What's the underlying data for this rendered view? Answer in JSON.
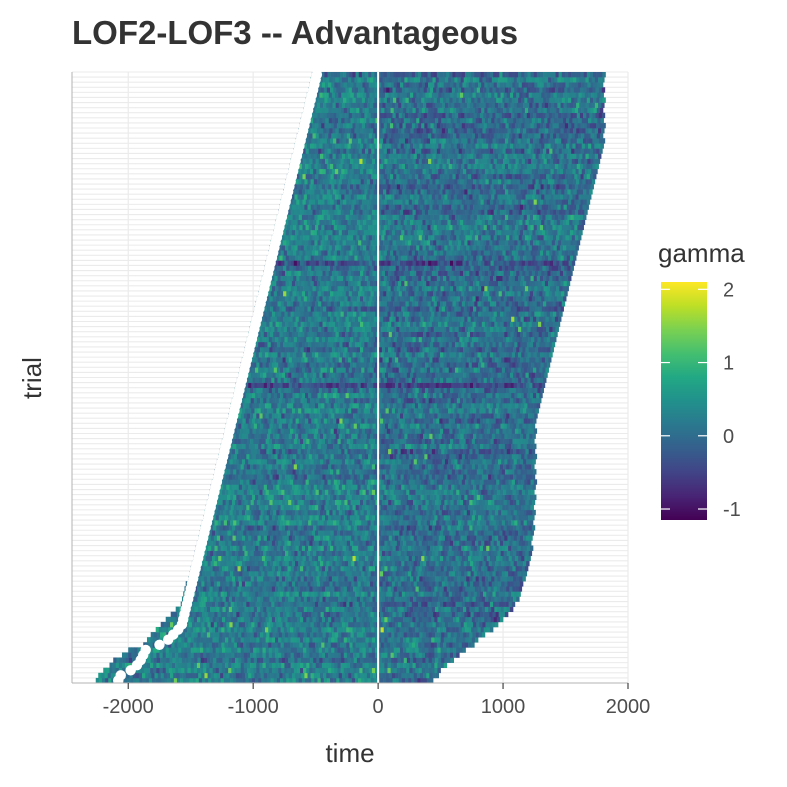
{
  "chart_data": {
    "type": "heatmap",
    "title": "LOF2-LOF3 -- Advantageous",
    "xlabel": "time",
    "ylabel": "trial",
    "xlim": [
      -2450,
      2000
    ],
    "x_ticks": [
      -2000,
      -1000,
      0,
      1000,
      2000
    ],
    "x_tick_labels": [
      "-2000",
      "-1000",
      "0",
      "1000",
      "2000"
    ],
    "grid": true,
    "n_trials": 120,
    "time_bin_ms": 25,
    "heat_row_window_start_ms": [
      -2260,
      -2240,
      -2200,
      -2150,
      -2120,
      -2050,
      -2000,
      -1880,
      -1850,
      -1820,
      -1780,
      -1740,
      -1700,
      -1660,
      -1620,
      -1580,
      -1570,
      -1560,
      -1550,
      -1540,
      -1520,
      -1510,
      -1500,
      -1490,
      -1480,
      -1470,
      -1460,
      -1450,
      -1440,
      -1430,
      -1420,
      -1410,
      -1400,
      -1390,
      -1380,
      -1370,
      -1360,
      -1350,
      -1340,
      -1330,
      -1320,
      -1310,
      -1300,
      -1290,
      -1280,
      -1270,
      -1260,
      -1250,
      -1240,
      -1230,
      -1220,
      -1210,
      -1200,
      -1190,
      -1180,
      -1170,
      -1160,
      -1150,
      -1140,
      -1130,
      -1120,
      -1110,
      -1100,
      -1090,
      -1080,
      -1070,
      -1060,
      -1050,
      -1040,
      -1030,
      -1020,
      -1010,
      -1000,
      -990,
      -980,
      -970,
      -960,
      -950,
      -940,
      -930,
      -920,
      -910,
      -900,
      -890,
      -880,
      -870,
      -860,
      -850,
      -840,
      -830,
      -820,
      -810,
      -800,
      -790,
      -780,
      -770,
      -760,
      -750,
      -740,
      -730,
      -720,
      -710,
      -700,
      -690,
      -680,
      -670,
      -660,
      -650,
      -640,
      -630,
      -620,
      -610,
      -600,
      -590,
      -580,
      -570,
      -560,
      -550,
      -540,
      -530
    ],
    "heat_row_window_end_ms": [
      440,
      470,
      500,
      540,
      600,
      650,
      700,
      750,
      800,
      850,
      900,
      950,
      1000,
      1030,
      1060,
      1090,
      1110,
      1130,
      1150,
      1160,
      1170,
      1180,
      1190,
      1200,
      1210,
      1215,
      1220,
      1225,
      1230,
      1235,
      1240,
      1240,
      1240,
      1240,
      1240,
      1245,
      1250,
      1250,
      1250,
      1250,
      1250,
      1250,
      1250,
      1250,
      1250,
      1250,
      1250,
      1250,
      1250,
      1250,
      1250,
      1250,
      1260,
      1270,
      1280,
      1290,
      1300,
      1310,
      1320,
      1330,
      1340,
      1350,
      1360,
      1370,
      1380,
      1390,
      1400,
      1410,
      1420,
      1430,
      1440,
      1450,
      1460,
      1470,
      1480,
      1490,
      1500,
      1510,
      1520,
      1530,
      1540,
      1550,
      1560,
      1570,
      1580,
      1590,
      1600,
      1610,
      1620,
      1630,
      1640,
      1650,
      1660,
      1670,
      1680,
      1690,
      1700,
      1710,
      1720,
      1730,
      1740,
      1750,
      1760,
      1770,
      1780,
      1790,
      1800,
      1800,
      1800,
      1800,
      1800,
      1800,
      1800,
      1800,
      1800,
      1800,
      1800,
      1800,
      1800,
      1800
    ],
    "heat_row_dot_ms": [
      -2080,
      -2060,
      -1980,
      -1930,
      -1900,
      -1880,
      -1860,
      -1750,
      -1680,
      -1640,
      -1600,
      -1570,
      -1560,
      -1550,
      -1540,
      -1530,
      -1520,
      -1510,
      -1500,
      -1490,
      -1480,
      -1470,
      -1460,
      -1450,
      -1440,
      -1430,
      -1420,
      -1410,
      -1400,
      -1390,
      -1380,
      -1370,
      -1360,
      -1350,
      -1340,
      -1330,
      -1320,
      -1310,
      -1300,
      -1290,
      -1280,
      -1270,
      -1260,
      -1250,
      -1240,
      -1230,
      -1220,
      -1210,
      -1200,
      -1190,
      -1180,
      -1170,
      -1160,
      -1150,
      -1140,
      -1130,
      -1120,
      -1110,
      -1100,
      -1090,
      -1080,
      -1070,
      -1060,
      -1050,
      -1040,
      -1030,
      -1020,
      -1010,
      -1000,
      -990,
      -980,
      -970,
      -960,
      -950,
      -940,
      -930,
      -920,
      -910,
      -900,
      -890,
      -880,
      -870,
      -860,
      -850,
      -840,
      -830,
      -820,
      -810,
      -800,
      -790,
      -780,
      -770,
      -760,
      -750,
      -740,
      -730,
      -720,
      -710,
      -700,
      -690,
      -680,
      -670,
      -660,
      -650,
      -640,
      -630,
      -620,
      -610,
      -600,
      -590,
      -580,
      -570,
      -560,
      -550,
      -540,
      -530,
      -520,
      -510,
      -500,
      -490
    ],
    "vline_x": 0,
    "colorscale": "viridis",
    "colorbar": {
      "title": "gamma",
      "min": -1.15,
      "max": 2.1,
      "ticks": [
        2,
        1,
        0,
        -1
      ],
      "tick_labels": [
        "2",
        "1",
        "0",
        "-1"
      ]
    },
    "value_model": {
      "mean": 0.05,
      "spread": 0.5,
      "seed": 7
    }
  }
}
